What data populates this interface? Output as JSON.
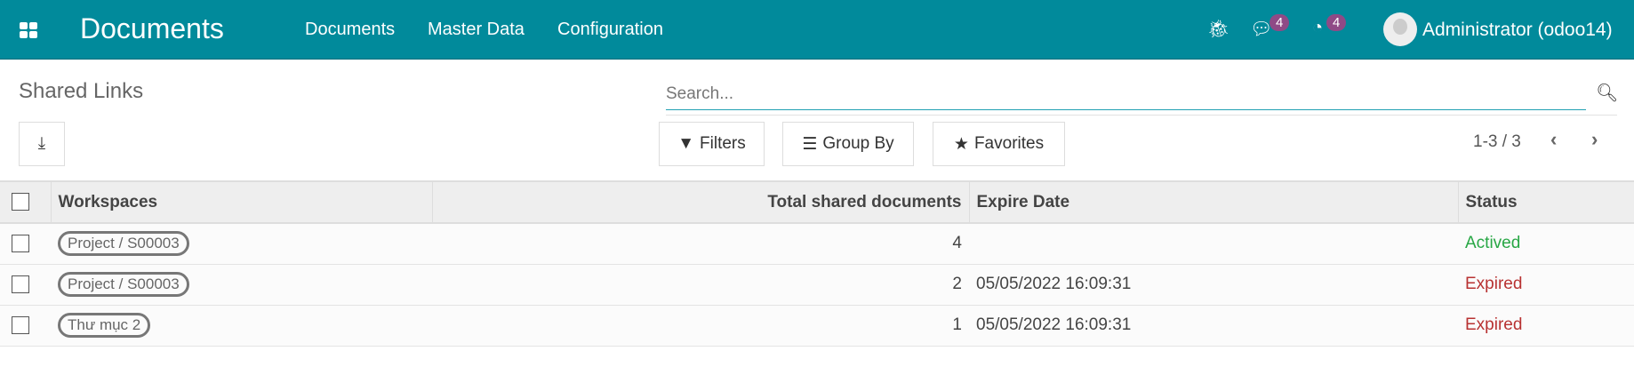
{
  "navbar": {
    "app_title": "Documents",
    "menu": [
      "Documents",
      "Master Data",
      "Configuration"
    ],
    "messages_count": "4",
    "activities_count": "4",
    "user": "Administrator (odoo14)",
    "color": "#018a9b"
  },
  "control_panel": {
    "breadcrumb": "Shared Links",
    "search_placeholder": "Search...",
    "filters": "Filters",
    "group_by": "Group By",
    "favorites": "Favorites",
    "pager": "1-3 / 3"
  },
  "table": {
    "headers": [
      "Workspaces",
      "Total shared documents",
      "Expire Date",
      "Status"
    ],
    "rows": [
      {
        "workspace": "Project / S00003",
        "total": "4",
        "expire": "",
        "status": "Actived"
      },
      {
        "workspace": "Project / S00003",
        "total": "2",
        "expire": "05/05/2022 16:09:31",
        "status": "Expired"
      },
      {
        "workspace": "Thư mục 2",
        "total": "1",
        "expire": "05/05/2022 16:09:31",
        "status": "Expired"
      }
    ]
  },
  "colors": {
    "active": "#28a745",
    "expired": "#b83232",
    "badge": "#8f4a86"
  }
}
